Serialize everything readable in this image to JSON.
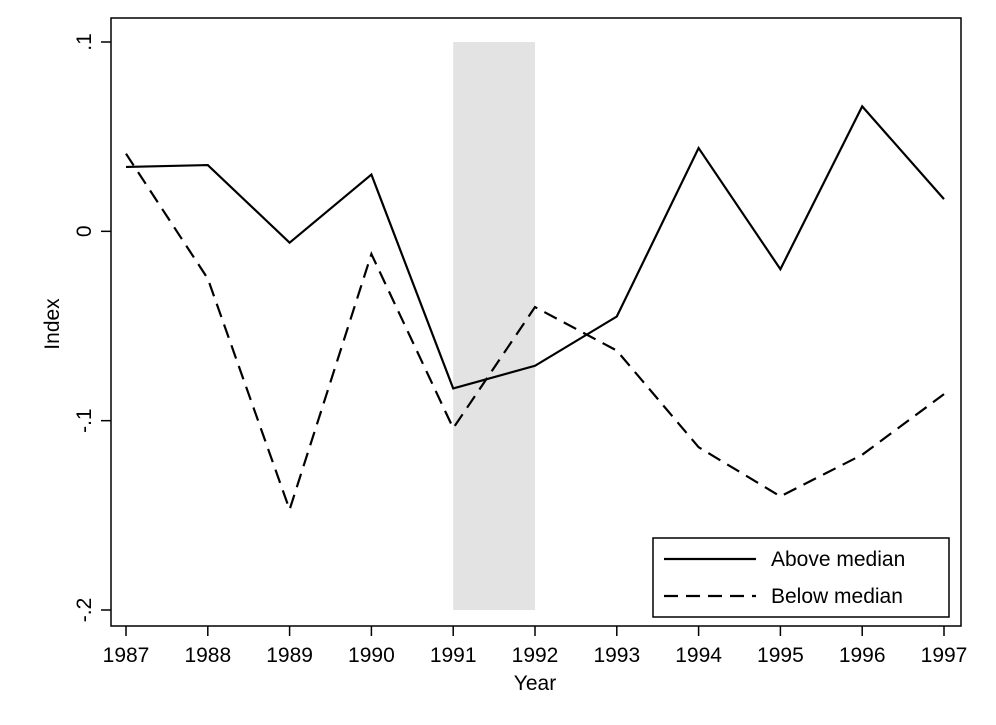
{
  "chart_data": {
    "type": "line",
    "xlabel": "Year",
    "ylabel": "Index",
    "x": [
      1987,
      1988,
      1989,
      1990,
      1991,
      1992,
      1993,
      1994,
      1995,
      1996,
      1997
    ],
    "xlim": [
      1987,
      1997
    ],
    "ylim": [
      -0.2,
      0.1
    ],
    "x_ticks": [
      "1987",
      "1988",
      "1989",
      "1990",
      "1991",
      "1992",
      "1993",
      "1994",
      "1995",
      "1996",
      "1997"
    ],
    "y_ticks": [
      {
        "value": 0.1,
        "label": ".1"
      },
      {
        "value": 0.0,
        "label": "0"
      },
      {
        "value": -0.1,
        "label": "-.1"
      },
      {
        "value": -0.2,
        "label": "-.2"
      }
    ],
    "shaded_region": {
      "x_start": 1991,
      "x_end": 1992,
      "y_start": -0.2,
      "y_end": 0.1,
      "color": "#e3e3e3"
    },
    "grid": false,
    "legend_position": "bottom-right",
    "series": [
      {
        "name": "Above median",
        "style": "solid",
        "color": "#000000",
        "values": [
          0.034,
          0.035,
          -0.006,
          0.03,
          -0.083,
          -0.071,
          -0.045,
          0.044,
          -0.02,
          0.066,
          0.017
        ]
      },
      {
        "name": "Below median",
        "style": "dashed",
        "color": "#000000",
        "values": [
          0.041,
          -0.025,
          -0.147,
          -0.012,
          -0.104,
          -0.04,
          -0.063,
          -0.114,
          -0.14,
          -0.118,
          -0.086
        ]
      }
    ]
  }
}
